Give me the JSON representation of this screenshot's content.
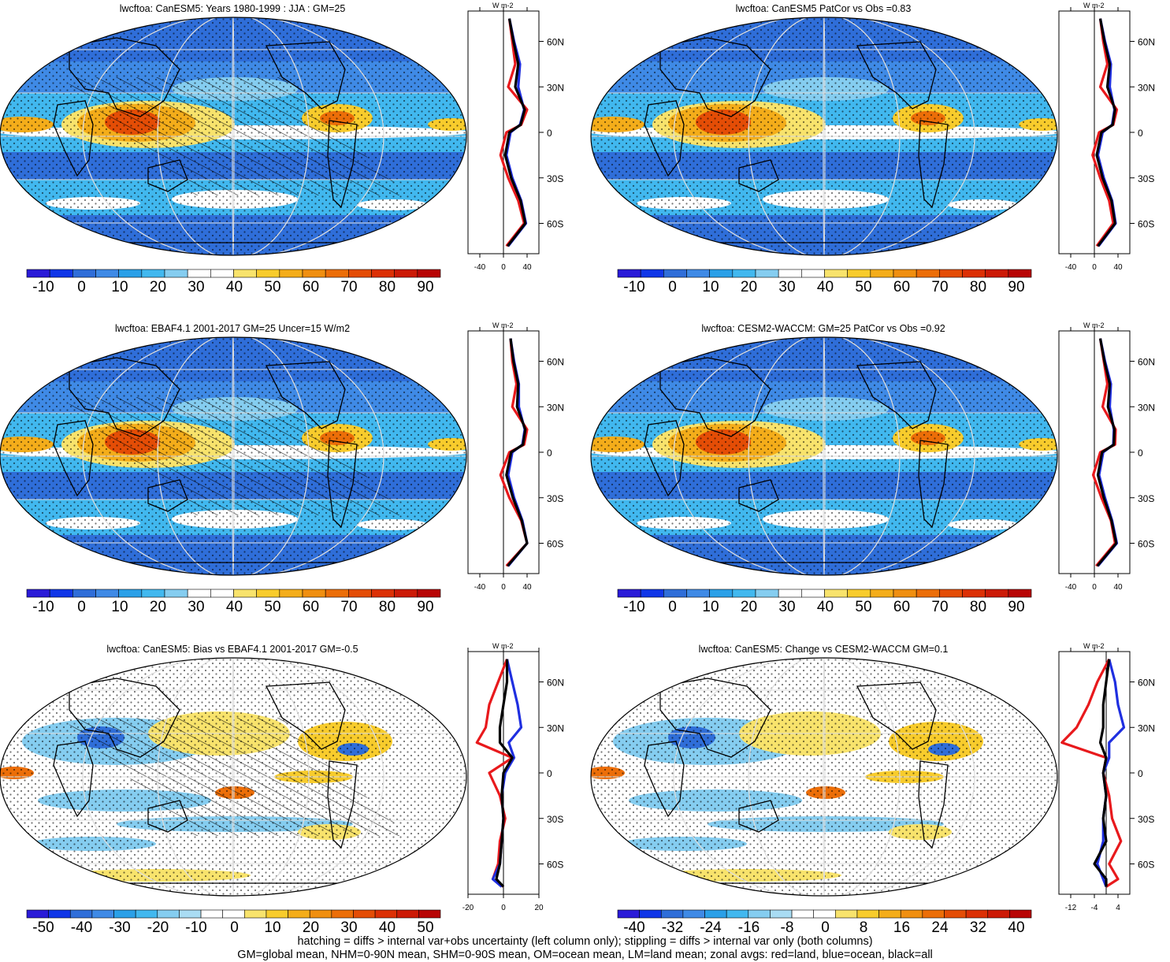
{
  "footer": {
    "line1": "hatching = diffs > internal var+obs uncertainty (left column only); stippling = diffs > internal var only (both columns)",
    "line2": "GM=global mean, NHM=0-90N mean, SHM=0-90S mean, OM=ocean mean, LM=land mean; zonal avgs: red=land, blue=ocean, black=all"
  },
  "units": "W m-2",
  "colors": {
    "land": "#e8191c",
    "ocean": "#1f2fe0",
    "all": "#000000"
  },
  "panels": [
    {
      "id": "p1",
      "title": "lwcftoa: CanESM5: Years 1980-1999 : JJA : GM=25",
      "colorbar_ticks": [
        "-10",
        "0",
        "10",
        "20",
        "30",
        "40",
        "50",
        "60",
        "70",
        "80",
        "90"
      ],
      "colorbar_type": "abs",
      "zonal_lat_ticks": [
        "60N",
        "30N",
        "0",
        "30S",
        "60S"
      ],
      "zonal_x_ticks": [
        "-40",
        "0",
        "40"
      ],
      "zonal_x_range": [
        -60,
        60
      ],
      "hatched": true,
      "chart_data": {
        "type": "line",
        "x_label": "W m-2",
        "lat": [
          75,
          60,
          45,
          30,
          15,
          5,
          0,
          -15,
          -30,
          -45,
          -60,
          -75
        ],
        "series": [
          {
            "name": "land",
            "values": [
              10,
              15,
              20,
              8,
              40,
              30,
              5,
              -5,
              8,
              25,
              35,
              5
            ]
          },
          {
            "name": "ocean",
            "values": [
              10,
              18,
              28,
              25,
              35,
              28,
              12,
              5,
              15,
              30,
              38,
              8
            ]
          },
          {
            "name": "all",
            "values": [
              10,
              17,
              25,
              20,
              36,
              29,
              10,
              3,
              13,
              29,
              37,
              7
            ]
          }
        ]
      }
    },
    {
      "id": "p2",
      "title": "lwcftoa: CanESM5 PatCor vs Obs =0.83",
      "colorbar_ticks": [
        "-10",
        "0",
        "10",
        "20",
        "30",
        "40",
        "50",
        "60",
        "70",
        "80",
        "90"
      ],
      "colorbar_type": "abs",
      "zonal_lat_ticks": [
        "60N",
        "30N",
        "0",
        "30S",
        "60S"
      ],
      "zonal_x_ticks": [
        "-40",
        "0",
        "40"
      ],
      "zonal_x_range": [
        -60,
        60
      ],
      "hatched": false,
      "chart_data": {
        "type": "line",
        "x_label": "W m-2",
        "lat": [
          75,
          60,
          45,
          30,
          15,
          5,
          0,
          -15,
          -30,
          -45,
          -60,
          -75
        ],
        "series": [
          {
            "name": "land",
            "values": [
              10,
              15,
              22,
              10,
              38,
              32,
              8,
              -3,
              10,
              25,
              32,
              4
            ]
          },
          {
            "name": "ocean",
            "values": [
              10,
              18,
              28,
              26,
              34,
              30,
              14,
              6,
              16,
              30,
              36,
              7
            ]
          },
          {
            "name": "all",
            "values": [
              10,
              17,
              26,
              22,
              35,
              31,
              12,
              4,
              14,
              29,
              35,
              6
            ]
          }
        ]
      }
    },
    {
      "id": "p3",
      "title": "lwcftoa: EBAF4.1 2001-2017 GM=25 Uncer=15 W/m2",
      "colorbar_ticks": [
        "-10",
        "0",
        "10",
        "20",
        "30",
        "40",
        "50",
        "60",
        "70",
        "80",
        "90"
      ],
      "colorbar_type": "abs",
      "zonal_lat_ticks": [
        "60N",
        "30N",
        "0",
        "30S",
        "60S"
      ],
      "zonal_x_ticks": [
        "-40",
        "0",
        "40"
      ],
      "zonal_x_range": [
        -60,
        60
      ],
      "hatched": true,
      "chart_data": {
        "type": "line",
        "x_label": "W m-2",
        "lat": [
          75,
          60,
          45,
          30,
          15,
          5,
          0,
          -15,
          -30,
          -45,
          -60,
          -75
        ],
        "series": [
          {
            "name": "land",
            "values": [
              12,
              15,
              22,
              15,
              40,
              35,
              10,
              -5,
              10,
              30,
              40,
              5
            ]
          },
          {
            "name": "ocean",
            "values": [
              12,
              18,
              26,
              26,
              36,
              32,
              15,
              8,
              18,
              32,
              40,
              8
            ]
          },
          {
            "name": "all",
            "values": [
              12,
              17,
              25,
              23,
              37,
              33,
              13,
              5,
              16,
              31,
              40,
              7
            ]
          }
        ]
      }
    },
    {
      "id": "p4",
      "title": "lwcftoa: CESM2-WACCM: GM=25 PatCor vs Obs =0.92",
      "colorbar_ticks": [
        "-10",
        "0",
        "10",
        "20",
        "30",
        "40",
        "50",
        "60",
        "70",
        "80",
        "90"
      ],
      "colorbar_type": "abs",
      "zonal_lat_ticks": [
        "60N",
        "30N",
        "0",
        "30S",
        "60S"
      ],
      "zonal_x_ticks": [
        "-40",
        "0",
        "40"
      ],
      "zonal_x_range": [
        -60,
        60
      ],
      "hatched": false,
      "chart_data": {
        "type": "line",
        "x_label": "W m-2",
        "lat": [
          75,
          60,
          45,
          30,
          15,
          5,
          0,
          -15,
          -30,
          -45,
          -60,
          -75
        ],
        "series": [
          {
            "name": "land",
            "values": [
              10,
              16,
              22,
              14,
              36,
              35,
              10,
              -2,
              12,
              28,
              35,
              3
            ]
          },
          {
            "name": "ocean",
            "values": [
              10,
              18,
              28,
              26,
              33,
              32,
              15,
              8,
              18,
              30,
              38,
              6
            ]
          },
          {
            "name": "all",
            "values": [
              10,
              17,
              26,
              23,
              34,
              33,
              13,
              6,
              16,
              29,
              37,
              5
            ]
          }
        ]
      }
    },
    {
      "id": "p5",
      "title": "lwcftoa: CanESM5: Bias vs EBAF4.1 2001-2017 GM=-0.5",
      "colorbar_ticks": [
        "-50",
        "-40",
        "-30",
        "-20",
        "-10",
        "0",
        "10",
        "20",
        "30",
        "40",
        "50"
      ],
      "colorbar_type": "diff",
      "zonal_lat_ticks": [
        "60N",
        "30N",
        "0",
        "30S",
        "60S"
      ],
      "zonal_x_ticks": [
        "-20",
        "0",
        "20"
      ],
      "zonal_x_range": [
        -20,
        20
      ],
      "hatched": true,
      "chart_data": {
        "type": "line",
        "x_label": "W m-2",
        "lat": [
          75,
          60,
          45,
          30,
          20,
          10,
          0,
          -15,
          -30,
          -45,
          -60,
          -70,
          -75
        ],
        "series": [
          {
            "name": "land",
            "values": [
              2,
              -3,
              -8,
              -10,
              -15,
              5,
              -8,
              -2,
              1,
              -2,
              -3,
              -6,
              0
            ]
          },
          {
            "name": "ocean",
            "values": [
              2,
              5,
              8,
              10,
              3,
              6,
              1,
              -1,
              0,
              -1,
              -2,
              -6,
              -1
            ]
          },
          {
            "name": "all",
            "values": [
              2,
              2,
              0,
              -2,
              -2,
              5,
              0,
              -1,
              0,
              -1,
              -2,
              -4,
              0
            ]
          }
        ]
      }
    },
    {
      "id": "p6",
      "title": "lwcftoa: CanESM5: Change vs CESM2-WACCM GM=0.1",
      "colorbar_ticks": [
        "-40",
        "-32",
        "-24",
        "-16",
        "-8",
        "0",
        "8",
        "16",
        "24",
        "32",
        "40"
      ],
      "colorbar_type": "diff",
      "zonal_lat_ticks": [
        "60N",
        "30N",
        "0",
        "30S",
        "60S"
      ],
      "zonal_x_ticks": [
        "-12",
        "-4",
        "4"
      ],
      "zonal_x_range": [
        -16,
        8
      ],
      "hatched": false,
      "chart_data": {
        "type": "line",
        "x_label": "W m-2",
        "lat": [
          75,
          60,
          45,
          30,
          20,
          10,
          0,
          -15,
          -30,
          -45,
          -60,
          -70,
          -75
        ],
        "series": [
          {
            "name": "land",
            "values": [
              1,
              -3,
              -6,
              -10,
              -15,
              0,
              -1,
              1,
              2,
              5,
              1,
              4,
              0
            ]
          },
          {
            "name": "ocean",
            "values": [
              1,
              3,
              4,
              6,
              1,
              1,
              -1,
              0,
              -1,
              -1,
              -3,
              -1,
              0
            ]
          },
          {
            "name": "all",
            "values": [
              1,
              0,
              -1,
              -1,
              -2,
              0,
              -1,
              0,
              -1,
              0,
              -4,
              0,
              0
            ]
          }
        ]
      }
    }
  ]
}
